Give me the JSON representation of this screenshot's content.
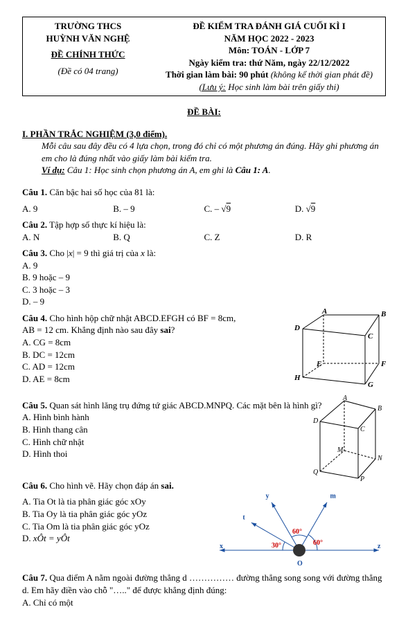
{
  "header": {
    "school_line1": "TRƯỜNG THCS",
    "school_line2": "HUỲNH VĂN NGHỆ",
    "official": "ĐỀ CHÍNH THỨC",
    "pages_note": "(Đề có 04 trang)",
    "title1": "ĐỀ KIỂM TRA ĐÁNH GIÁ CUỐI KÌ I",
    "title2": "NĂM HỌC 2022 - 2023",
    "subject": "Môn: TOÁN - LỚP 7",
    "date": "Ngày kiểm tra: thứ Năm, ngày 22/12/2022",
    "duration_prefix": "Thời gian làm bài: 90 phút ",
    "duration_note": "(không kể thời gian phát đề)",
    "note_prefix": "(Lưu ý:",
    "note_body": " Học sinh làm bài trên giấy thi)"
  },
  "titles": {
    "de_bai": "ĐỀ BÀI:",
    "section1": "I. PHẦN TRẮC NGHIỆM (3,0 điểm)."
  },
  "intro": {
    "p1": "Mỗi câu sau đây đều có 4 lựa chọn, trong đó chỉ có một phương án đúng. Hãy ghi phương án em cho là đúng nhất vào giấy làm bài kiểm tra.",
    "vidu_label": "Ví dụ:",
    "vidu_body_a": " Câu 1: Học sinh chọn phương án A, em ghi là ",
    "vidu_body_b": "Câu 1: A",
    "vidu_body_c": "."
  },
  "q1": {
    "label": "Câu 1.",
    "text": " Căn bậc hai số học của 81 là:",
    "A": "A. 9",
    "B": "B. – 9",
    "C_pre": "C. – ",
    "C_sqrt": "9",
    "D_pre": "D. ",
    "D_sqrt": "9"
  },
  "q2": {
    "label": "Câu 2.",
    "text": " Tập hợp số thực kí hiệu là:",
    "A": "A. N",
    "B": "B. Q",
    "C": "C. Z",
    "D": "D. R"
  },
  "q3": {
    "label": "Câu 3.",
    "text_pre": " Cho |",
    "text_var": "x",
    "text_post": "| = 9 thì giá trị của ",
    "text_var2": "x",
    "text_post2": " là:",
    "A": "A. 9",
    "B": "B. 9 hoặc – 9",
    "C": "C. 3 hoặc – 3",
    "D": "D. – 9"
  },
  "q4": {
    "label": "Câu 4.",
    "text1": " Cho hình hộp chữ nhật ABCD.EFGH có BF = 8cm,",
    "text2": "AB = 12 cm. Khẳng định nào sau đây ",
    "text2_sai": "sai",
    "text2_q": "?",
    "A": "A. CG = 8cm",
    "B": "B. DC = 12cm",
    "C": "C. AD = 12cm",
    "D": "D. AE = 8cm"
  },
  "q5": {
    "label": "Câu 5.",
    "text": " Quan sát hình lăng trụ đứng tứ giác ABCD.MNPQ. Các mặt bên là hình gì?",
    "A": "A. Hình bình hành",
    "B": "B. Hình thang cân",
    "C": "C. Hình chữ nhật",
    "D": "D. Hình thoi"
  },
  "q6": {
    "label": "Câu 6.",
    "text": " Cho hình vẽ. Hãy chọn đáp án ",
    "text_sai": "sai.",
    "A": "A. Tia Ot là tia phân giác góc xOy",
    "B": "B. Tia Oy là tia phân giác góc yOz",
    "C": "C. Tia Om là tia phân giác góc yOz",
    "D_pre": "D. ",
    "D_eq": "xÔt = yÔt"
  },
  "q7": {
    "label": "Câu 7.",
    "text": " Qua điểm A nằm ngoài đường thẳng d …………… đường thẳng song song với đường thẳng d. Em hãy điền vào chỗ \"…..\" để được khẳng định đúng:",
    "A": "A. Chỉ có một"
  },
  "fig_cube": {
    "A": "A",
    "B": "B",
    "C": "C",
    "D": "D",
    "E": "E",
    "F": "F",
    "G": "G",
    "H": "H",
    "stroke": "#000",
    "dash": "3 2",
    "fontsize": 11
  },
  "fig_prism": {
    "A": "A",
    "B": "B",
    "C": "C",
    "D": "D",
    "M": "M",
    "N": "N",
    "P": "P",
    "Q": "Q",
    "stroke": "#000",
    "dash": "3 2",
    "fontsize": 10
  },
  "fig_angle": {
    "x": "x",
    "y": "y",
    "t": "t",
    "m": "m",
    "z": "z",
    "O": "O",
    "deg30": "30°",
    "deg60a": "60°",
    "deg60b": "60°",
    "line_color": "#1a4fa0",
    "text_color": "#cc0000",
    "fontsize": 10
  }
}
